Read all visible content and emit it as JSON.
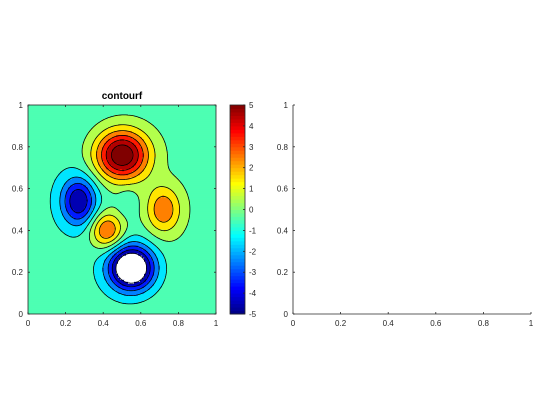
{
  "figure": {
    "background": "#ffffff"
  },
  "chart_data": [
    {
      "type": "contourf",
      "title": "contourf",
      "function": "peaks-like surface: positive lobes at (0.50,0.76),(0.72,0.50),(0.42,0.40); negative lobes at (0.55,0.22),(0.27,0.54),(0.53,0.54)",
      "xlim": [
        0,
        1
      ],
      "ylim": [
        0,
        1
      ],
      "xticks": [
        "0",
        "0.2",
        "0.4",
        "0.6",
        "0.8",
        "1"
      ],
      "yticks": [
        "0",
        "0.2",
        "0.4",
        "0.6",
        "0.8",
        "1"
      ],
      "contour_levels": [
        -5,
        -4,
        -3,
        -2,
        -1,
        0,
        1,
        2,
        3,
        4,
        5
      ],
      "lobes": [
        {
          "cx": 0.5,
          "cy": 0.76,
          "sx": 0.1,
          "sy": 0.085,
          "amp": 6.5
        },
        {
          "cx": 0.72,
          "cy": 0.5,
          "sx": 0.065,
          "sy": 0.08,
          "amp": 3.2
        },
        {
          "cx": 0.42,
          "cy": 0.4,
          "sx": 0.06,
          "sy": 0.06,
          "amp": 3.6
        },
        {
          "cx": 0.55,
          "cy": 0.22,
          "sx": 0.085,
          "sy": 0.075,
          "amp": -7.2
        },
        {
          "cx": 0.27,
          "cy": 0.54,
          "sx": 0.065,
          "sy": 0.08,
          "amp": -4.4
        },
        {
          "cx": 0.53,
          "cy": 0.54,
          "sx": 0.03,
          "sy": 0.04,
          "amp": -0.8
        }
      ],
      "background_field": {
        "base": -0.5,
        "slope_x": 0.55,
        "slope_y": 0.45
      },
      "colorbar": {
        "ticks": [
          "5",
          "4",
          "3",
          "2",
          "1",
          "0",
          "-1",
          "-2",
          "-3",
          "-4",
          "-5"
        ],
        "range": [
          -5,
          5
        ],
        "colormap": "jet"
      }
    },
    {
      "type": "empty",
      "title": "",
      "xlim": [
        0,
        1
      ],
      "ylim": [
        0,
        1
      ],
      "xticks": [
        "0",
        "0.2",
        "0.4",
        "0.6",
        "0.8",
        "1"
      ],
      "yticks": [
        "0",
        "0.2",
        "0.4",
        "0.6",
        "0.8",
        "1"
      ]
    }
  ]
}
